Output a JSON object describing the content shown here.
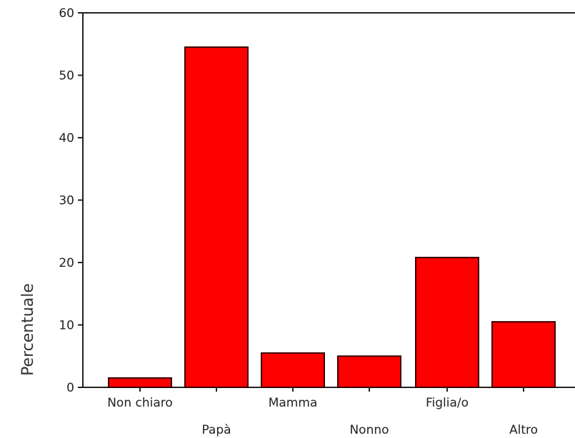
{
  "chart_data": {
    "type": "bar",
    "title": "",
    "xlabel": "",
    "ylabel": "Percentuale",
    "categories": [
      "Non chiaro",
      "Papà",
      "Mamma",
      "Nonno",
      "Figlia/o",
      "Altro"
    ],
    "values": [
      1.5,
      54.5,
      5.5,
      5.0,
      20.8,
      10.5
    ],
    "ylim": [
      0,
      60
    ],
    "yticks": [
      "0",
      "10",
      "20",
      "30",
      "40",
      "50",
      "60"
    ],
    "grid": false,
    "legend": "none",
    "colors": {
      "bar_fill": "#ff0000",
      "bar_stroke": "#3a0000",
      "axis": "#222222"
    }
  }
}
